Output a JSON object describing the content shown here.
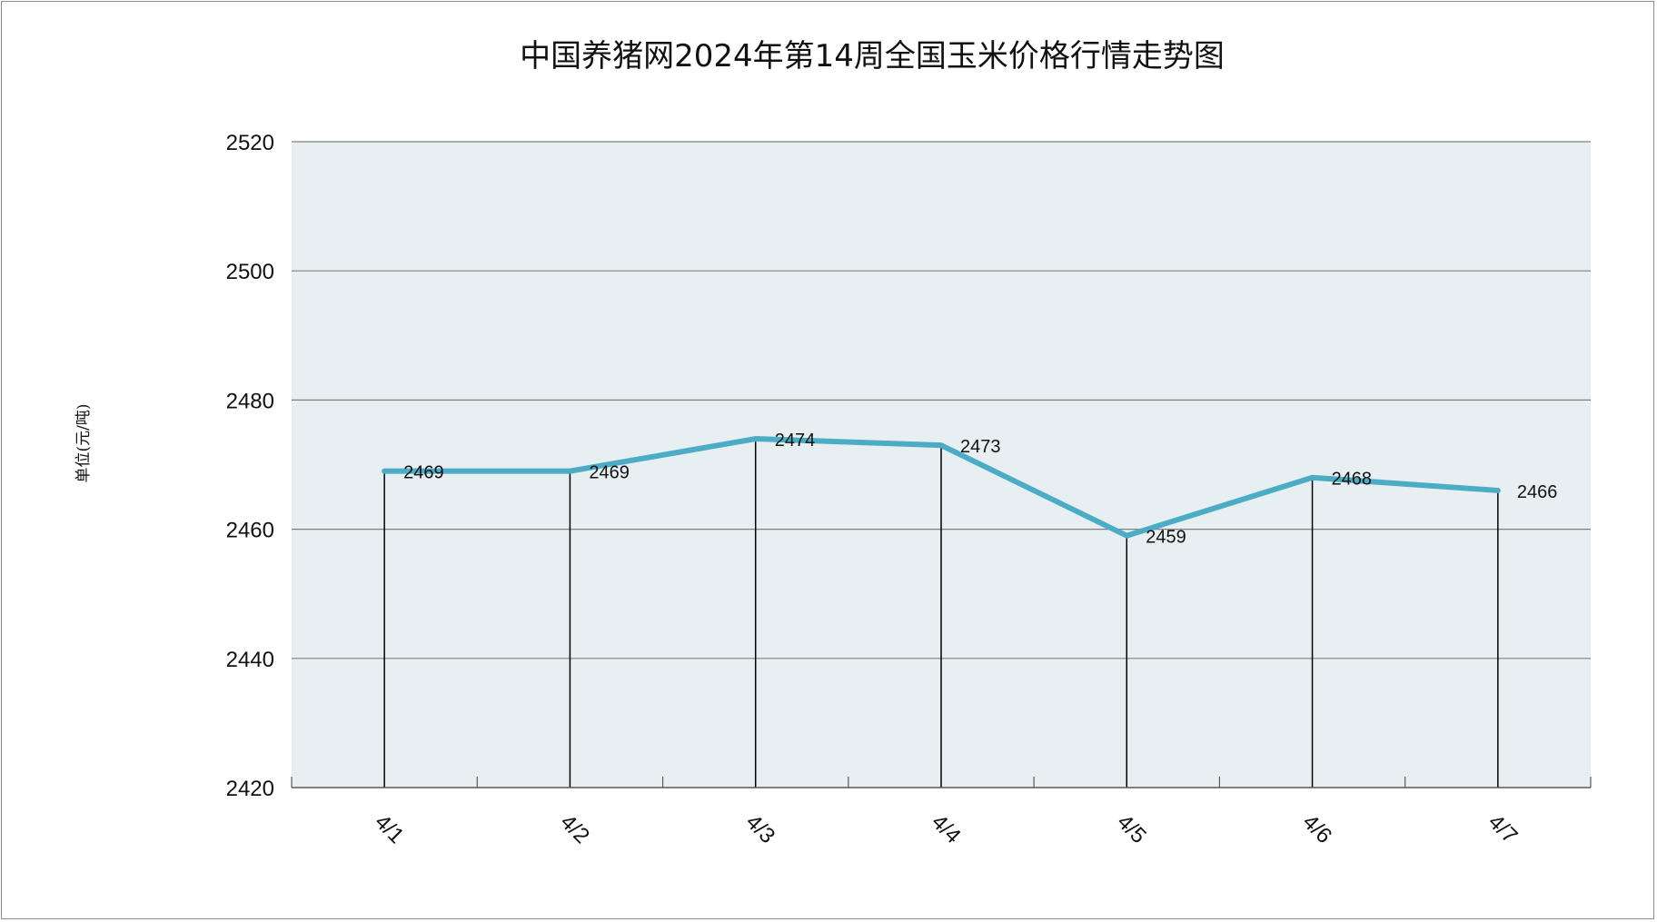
{
  "chart_data": {
    "type": "line",
    "title": "中国养猪网2024年第14周全国玉米价格行情走势图",
    "ylabel": "单位(元/吨)",
    "xlabel": "",
    "categories": [
      "4/1",
      "4/2",
      "4/3",
      "4/4",
      "4/5",
      "4/6",
      "4/7"
    ],
    "values": [
      2469,
      2469,
      2474,
      2473,
      2459,
      2468,
      2466
    ],
    "ylim": [
      2420,
      2520
    ],
    "yticks": [
      "2420",
      "2440",
      "2460",
      "2480",
      "2500",
      "2520"
    ],
    "grid": true,
    "legend": "none"
  },
  "colors": {
    "line": "#4BACC6",
    "plot_background": "#E8EFF3",
    "gridline": "#7f7f7f",
    "drop_line": "#000000"
  }
}
